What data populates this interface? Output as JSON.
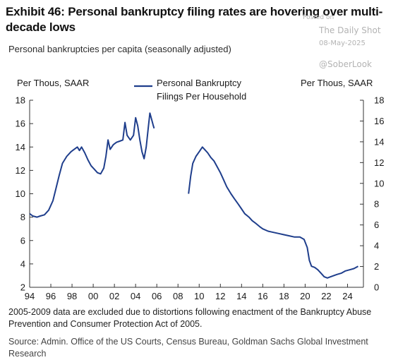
{
  "header": {
    "title": "Exhibit 46: Personal bankruptcy filing rates are hovering over multi-decade lows",
    "subtitle": "Personal bankruptcies per capita (seasonally adjusted)"
  },
  "watermark": {
    "posted": "Posted on",
    "site": "The Daily Shot",
    "date": "08-May-2025",
    "handle": "@SoberLook"
  },
  "footnote": "2005-2009 data are excluded due to distortions following enactment of the Bankruptcy Abuse Prevention and Consumer Protection Act of 2005.",
  "source": "Source: Admin. Office of the US Courts, Census Bureau, Goldman Sachs Global Investment Research",
  "colors": {
    "series": "#1f3e8c",
    "axis": "#333333"
  },
  "chart_data": {
    "type": "line",
    "left_axis_label": "Per Thous,  SAAR",
    "right_axis_label": "Per Thous,  SAAR",
    "ylim_left": [
      2,
      18
    ],
    "ylim_right": [
      0,
      18
    ],
    "yticks_left": [
      "2",
      "4",
      "6",
      "8",
      "10",
      "12",
      "14",
      "16",
      "18"
    ],
    "yticks_right": [
      "0",
      "2",
      "4",
      "6",
      "8",
      "10",
      "12",
      "14",
      "16",
      "18"
    ],
    "xlim": [
      1994,
      2025.5
    ],
    "xticks": [
      "94",
      "96",
      "98",
      "00",
      "02",
      "04",
      "06",
      "08",
      "10",
      "12",
      "14",
      "16",
      "18",
      "20",
      "22",
      "24"
    ],
    "legend_placement": "top-center",
    "series": [
      {
        "name": "Personal Bankruptcy Filings Per Household",
        "axis": "left",
        "segments": [
          [
            [
              1994.0,
              8.3
            ],
            [
              1994.3,
              8.1
            ],
            [
              1994.7,
              8.0
            ],
            [
              1995.0,
              8.1
            ],
            [
              1995.4,
              8.2
            ],
            [
              1995.8,
              8.6
            ],
            [
              1996.2,
              9.4
            ],
            [
              1996.5,
              10.5
            ],
            [
              1996.8,
              11.6
            ],
            [
              1997.1,
              12.6
            ],
            [
              1997.5,
              13.2
            ],
            [
              1997.9,
              13.6
            ],
            [
              1998.2,
              13.8
            ],
            [
              1998.5,
              14.0
            ],
            [
              1998.7,
              13.7
            ],
            [
              1998.9,
              14.0
            ],
            [
              1999.2,
              13.5
            ],
            [
              1999.5,
              12.9
            ],
            [
              1999.8,
              12.4
            ],
            [
              2000.1,
              12.1
            ],
            [
              2000.4,
              11.8
            ],
            [
              2000.7,
              11.7
            ],
            [
              2001.0,
              12.2
            ],
            [
              2001.2,
              13.2
            ],
            [
              2001.4,
              14.6
            ],
            [
              2001.6,
              13.8
            ],
            [
              2001.9,
              14.2
            ],
            [
              2002.2,
              14.4
            ],
            [
              2002.5,
              14.5
            ],
            [
              2002.8,
              14.6
            ],
            [
              2003.0,
              16.1
            ],
            [
              2003.2,
              15.0
            ],
            [
              2003.5,
              14.6
            ],
            [
              2003.8,
              15.0
            ],
            [
              2004.0,
              16.5
            ],
            [
              2004.2,
              15.8
            ],
            [
              2004.4,
              14.6
            ],
            [
              2004.6,
              13.6
            ],
            [
              2004.8,
              13.0
            ],
            [
              2005.0,
              14.0
            ],
            [
              2005.2,
              15.7
            ],
            [
              2005.35,
              16.9
            ],
            [
              2005.5,
              16.4
            ],
            [
              2005.65,
              15.9
            ],
            [
              2005.75,
              15.6
            ]
          ],
          [
            [
              2009.0,
              10.0
            ],
            [
              2009.2,
              11.5
            ],
            [
              2009.4,
              12.6
            ],
            [
              2009.7,
              13.2
            ],
            [
              2010.0,
              13.6
            ],
            [
              2010.3,
              14.0
            ],
            [
              2010.5,
              13.8
            ],
            [
              2010.8,
              13.5
            ],
            [
              2011.1,
              13.1
            ],
            [
              2011.4,
              12.8
            ],
            [
              2011.7,
              12.3
            ],
            [
              2012.0,
              11.8
            ],
            [
              2012.3,
              11.2
            ],
            [
              2012.6,
              10.6
            ],
            [
              2013.0,
              10.0
            ],
            [
              2013.3,
              9.6
            ],
            [
              2013.7,
              9.1
            ],
            [
              2014.0,
              8.7
            ],
            [
              2014.3,
              8.3
            ],
            [
              2014.7,
              8.0
            ],
            [
              2015.0,
              7.7
            ],
            [
              2015.3,
              7.5
            ],
            [
              2015.7,
              7.2
            ],
            [
              2016.0,
              7.0
            ],
            [
              2016.5,
              6.8
            ],
            [
              2017.0,
              6.7
            ],
            [
              2017.5,
              6.6
            ],
            [
              2018.0,
              6.5
            ],
            [
              2018.5,
              6.4
            ],
            [
              2019.0,
              6.3
            ],
            [
              2019.5,
              6.3
            ],
            [
              2019.9,
              6.1
            ],
            [
              2020.2,
              5.4
            ],
            [
              2020.4,
              4.3
            ],
            [
              2020.6,
              3.8
            ],
            [
              2020.9,
              3.7
            ],
            [
              2021.2,
              3.5
            ],
            [
              2021.5,
              3.2
            ],
            [
              2021.8,
              2.9
            ],
            [
              2022.1,
              2.8
            ],
            [
              2022.4,
              2.9
            ],
            [
              2022.7,
              3.0
            ],
            [
              2023.0,
              3.1
            ],
            [
              2023.4,
              3.2
            ],
            [
              2023.8,
              3.4
            ],
            [
              2024.2,
              3.5
            ],
            [
              2024.6,
              3.6
            ],
            [
              2025.0,
              3.8
            ]
          ]
        ]
      }
    ]
  }
}
